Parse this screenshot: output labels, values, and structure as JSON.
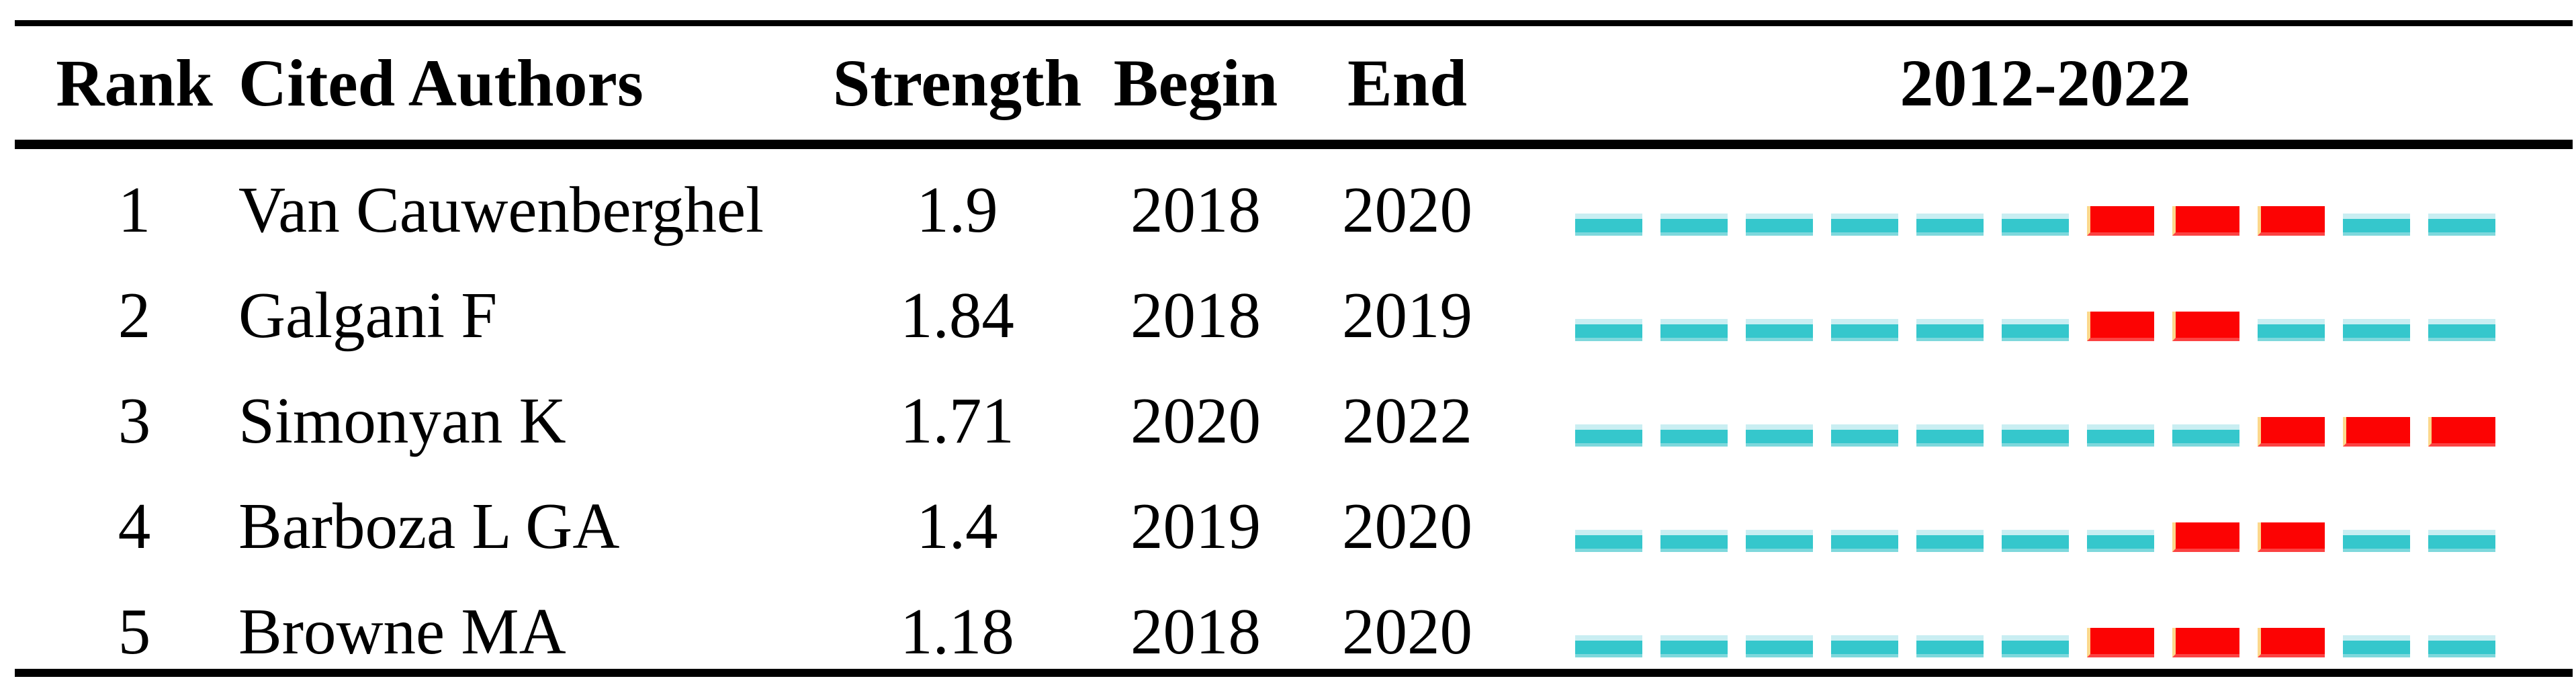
{
  "chart_data": {
    "type": "table",
    "columns": [
      "Rank",
      "Cited Authors",
      "Strength",
      "Begin",
      "End",
      "2012-2022"
    ],
    "timeline": {
      "start": 2012,
      "end": 2022,
      "label": "2012-2022"
    },
    "rows": [
      {
        "rank": "1",
        "cited_author": "Van Cauwenberghel",
        "strength": "1.9",
        "begin": 2018,
        "end": 2020
      },
      {
        "rank": "2",
        "cited_author": "Galgani F",
        "strength": "1.84",
        "begin": 2018,
        "end": 2019
      },
      {
        "rank": "3",
        "cited_author": "Simonyan K",
        "strength": "1.71",
        "begin": 2020,
        "end": 2022
      },
      {
        "rank": "4",
        "cited_author": "Barboza L GA",
        "strength": "1.4",
        "begin": 2019,
        "end": 2020
      },
      {
        "rank": "5",
        "cited_author": "Browne MA",
        "strength": "1.18",
        "begin": 2018,
        "end": 2020
      }
    ]
  },
  "ui": {
    "colors": {
      "background": "#ffffff",
      "text": "#000000",
      "rule": "#000000",
      "base_dash": "#35c7cc",
      "base_dash_edge_top": "#c9eef2",
      "base_dash_edge_bottom": "#7ed8dc",
      "burst_dash": "#fc0303",
      "burst_dash_edge_left": "#fcd88c",
      "burst_dash_edge_bottom": "#fb4242"
    }
  }
}
